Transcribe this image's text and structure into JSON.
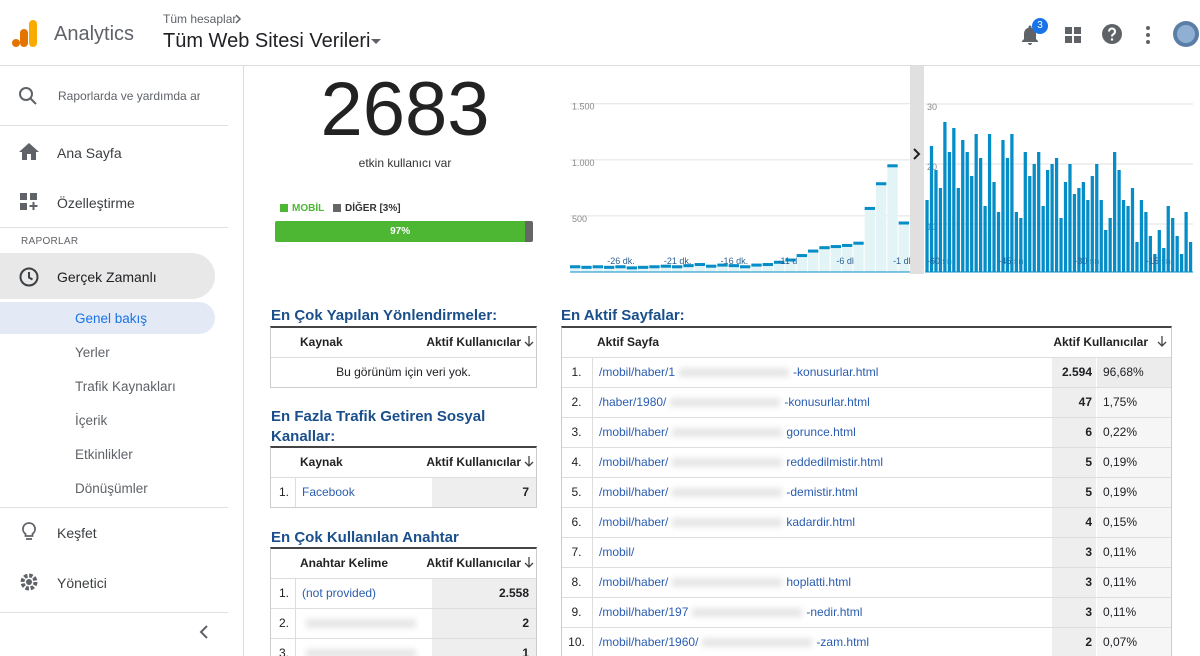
{
  "header": {
    "product": "Analytics",
    "breadcrumb": "Tüm hesaplar",
    "property": "Tüm Web Sitesi Verileri",
    "notifications": "3"
  },
  "sidebar": {
    "search": "Raporlarda ve yardımda ara",
    "items": [
      "Ana Sayfa",
      "Özelleştirme"
    ],
    "section": "RAPORLAR",
    "realtime": "Gerçek Zamanlı",
    "sub": [
      "Genel bakış",
      "Yerler",
      "Trafik Kaynakları",
      "İçerik",
      "Etkinlikler",
      "Dönüşümler"
    ],
    "bottom": [
      "Keşfet",
      "Yönetici"
    ]
  },
  "summary": {
    "active_users": "2683",
    "caption": "etkin kullanıcı var",
    "mobile": {
      "label": "MOBİL",
      "share": 97,
      "share_label": "97%",
      "color": "#4db633"
    },
    "other": {
      "label": "DİĞER [3%]",
      "share": 3,
      "color": "#666666"
    }
  },
  "minute_chart": {
    "type": "bar",
    "categories": [
      null,
      null,
      null,
      null,
      "-26 dk.",
      null,
      null,
      null,
      null,
      "-21 dk.",
      null,
      null,
      null,
      null,
      "-16 dk.",
      null,
      null,
      null,
      null,
      "-11 dk.",
      null,
      null,
      null,
      null,
      "-6 dk.",
      null,
      null,
      null,
      null,
      "-1 dk."
    ],
    "values": [
      60,
      55,
      60,
      55,
      60,
      50,
      55,
      60,
      65,
      60,
      70,
      80,
      65,
      75,
      70,
      60,
      75,
      80,
      100,
      120,
      160,
      200,
      230,
      240,
      250,
      270,
      580,
      800,
      960,
      450
    ],
    "ylim": [
      0,
      1560
    ],
    "yticks": [
      500,
      {
        "value": 1000,
        "label": "1.000"
      },
      {
        "value": 1500,
        "label": "1.500"
      }
    ],
    "color": "#058dc7",
    "grid": true
  },
  "second_chart": {
    "type": "bar",
    "categories": [
      null,
      null,
      null,
      "-60 sn.",
      null,
      null,
      null,
      null,
      null,
      null,
      null,
      null,
      null,
      null,
      null,
      null,
      null,
      null,
      null,
      "-45 sn.",
      null,
      null,
      null,
      null,
      null,
      null,
      null,
      null,
      null,
      null,
      null,
      null,
      null,
      null,
      null,
      null,
      "-30 sn.",
      null,
      null,
      null,
      null,
      null,
      null,
      null,
      null,
      null,
      null,
      null,
      null,
      null,
      null,
      null,
      "-15 sn.",
      null,
      null,
      null,
      null,
      null,
      null,
      null
    ],
    "values": [
      14,
      23,
      19,
      16,
      27,
      22,
      26,
      16,
      24,
      22,
      18,
      25,
      21,
      13,
      25,
      17,
      12,
      24,
      21,
      25,
      12,
      11,
      22,
      18,
      20,
      22,
      13,
      19,
      20,
      21,
      11,
      17,
      20,
      15,
      16,
      17,
      14,
      18,
      20,
      14,
      9,
      11,
      22,
      19,
      14,
      13,
      16,
      7,
      14,
      12,
      8,
      5,
      9,
      6,
      13,
      11,
      8,
      5,
      12,
      7
    ],
    "ylim": [
      0,
      31
    ],
    "yticks": [
      10,
      20,
      30
    ],
    "color": "#058dc7",
    "grid": true
  },
  "referrals": {
    "title": "En Çok Yapılan Yönlendirmeler:",
    "columns": [
      "Kaynak",
      "Aktif Kullanıcılar"
    ],
    "empty": "Bu görünüm için veri yok."
  },
  "social": {
    "title": "En Fazla Trafik Getiren Sosyal Kanallar:",
    "columns": [
      "Kaynak",
      "Aktif Kullanıcılar"
    ],
    "rows": [
      {
        "rank": "1.",
        "name": "Facebook",
        "users": "7"
      }
    ]
  },
  "keywords": {
    "title": "En Çok Kullanılan Anahtar Kelimeler:",
    "columns": [
      "Anahtar Kelime",
      "Aktif Kullanıcılar"
    ],
    "rows": [
      {
        "rank": "1.",
        "name": "(not provided)",
        "users": "2.558"
      },
      {
        "rank": "2.",
        "users": "2"
      },
      {
        "rank": "3.",
        "users": "1"
      }
    ]
  },
  "pages": {
    "title": "En Aktif Sayfalar:",
    "columns": [
      "Aktif Sayfa",
      "Aktif Kullanıcılar"
    ],
    "rows": [
      {
        "rank": "1.",
        "start": "/mobil/haber/1",
        "end": "-konusurlar.html",
        "users": "2.594",
        "share": "96,68%"
      },
      {
        "rank": "2.",
        "start": "/haber/1980/",
        "end": "-konusurlar.html",
        "users": "47",
        "share": "1,75%"
      },
      {
        "rank": "3.",
        "start": "/mobil/haber/",
        "end": "gorunce.html",
        "users": "6",
        "share": "0,22%"
      },
      {
        "rank": "4.",
        "start": "/mobil/haber/",
        "end": "reddedilmistir.html",
        "users": "5",
        "share": "0,19%"
      },
      {
        "rank": "5.",
        "start": "/mobil/haber/",
        "end": "-demistir.html",
        "users": "5",
        "share": "0,19%"
      },
      {
        "rank": "6.",
        "start": "/mobil/haber/",
        "end": "kadardir.html",
        "users": "4",
        "share": "0,15%"
      },
      {
        "rank": "7.",
        "start": "/mobil/",
        "users": "3",
        "share": "0,11%"
      },
      {
        "rank": "8.",
        "start": "/mobil/haber/",
        "end": "hoplatti.html",
        "users": "3",
        "share": "0,11%"
      },
      {
        "rank": "9.",
        "start": "/mobil/haber/197",
        "end": "-nedir.html",
        "users": "3",
        "share": "0,11%"
      },
      {
        "rank": "10.",
        "start": "/mobil/haber/1960/",
        "end": "-zam.html",
        "users": "2",
        "share": "0,07%"
      }
    ]
  }
}
